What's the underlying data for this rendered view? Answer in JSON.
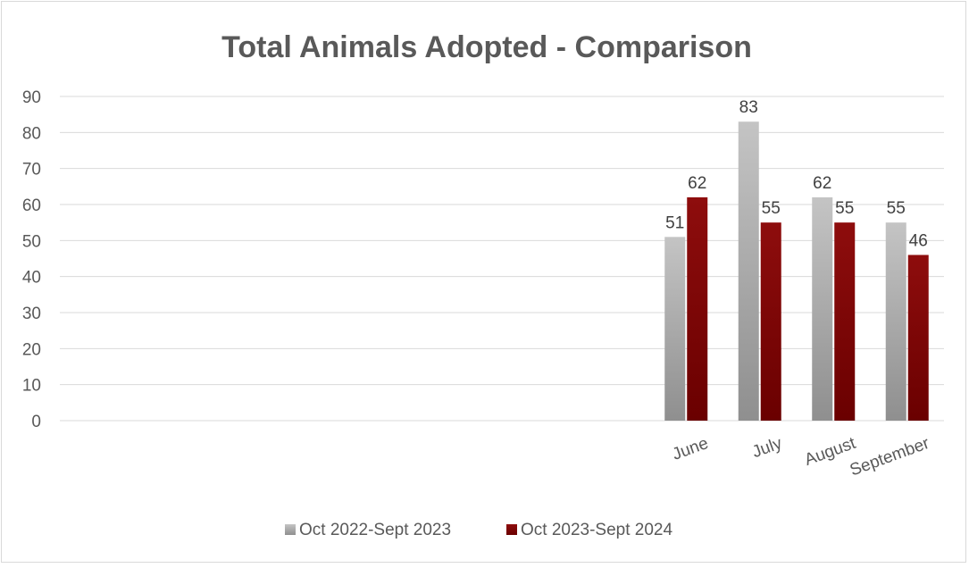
{
  "chart_data": {
    "type": "bar",
    "title": "Total Animals Adopted - Comparison",
    "categories": [
      "",
      "",
      "",
      "",
      "",
      "",
      "",
      "",
      "June",
      "July",
      "August",
      "September"
    ],
    "series": [
      {
        "name": "Oct 2022-Sept 2023",
        "values": [
          null,
          null,
          null,
          null,
          null,
          null,
          null,
          null,
          51,
          83,
          62,
          55
        ],
        "color": "#a6a6a6"
      },
      {
        "name": "Oct 2023-Sept 2024",
        "values": [
          null,
          null,
          null,
          null,
          null,
          null,
          null,
          null,
          62,
          55,
          55,
          46
        ],
        "color": "#7b0000"
      }
    ],
    "ylim": [
      0,
      90
    ],
    "yticks": [
      0,
      10,
      20,
      30,
      40,
      50,
      60,
      70,
      80,
      90
    ],
    "grid": true,
    "legend": "bottom",
    "data_labels": true
  }
}
